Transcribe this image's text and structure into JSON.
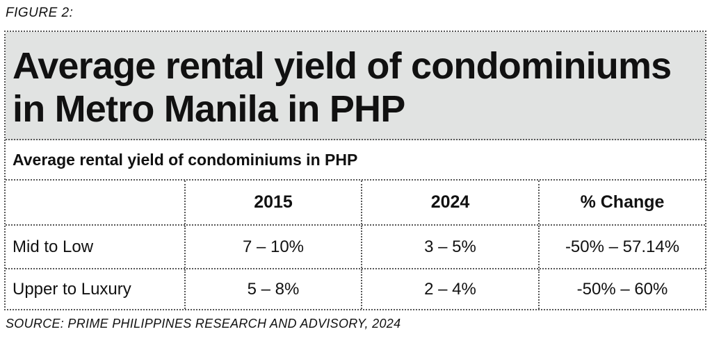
{
  "figure_label": "FIGURE 2:",
  "title_line1": "Average rental yield of condominiums",
  "title_line2": "in Metro Manila in PHP",
  "source": "SOURCE: PRIME PHILIPPINES RESEARCH AND ADVISORY, 2024",
  "chart_data": {
    "type": "table",
    "title": "Average rental yield of condominiums in Metro Manila in PHP",
    "subtitle": "Average rental yield of condominiums in PHP",
    "columns": [
      "",
      "2015",
      "2024",
      "% Change"
    ],
    "rows": [
      [
        "Mid to Low",
        "7 – 10%",
        "3 – 5%",
        "-50% – 57.14%"
      ],
      [
        "Upper to Luxury",
        "5 – 8%",
        "2 – 4%",
        "-50% – 60%"
      ]
    ]
  }
}
